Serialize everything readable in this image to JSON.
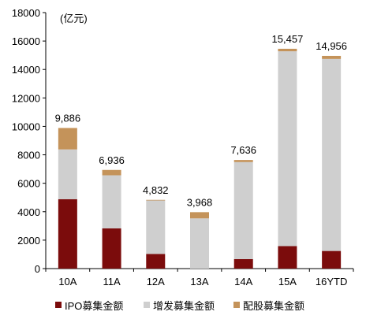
{
  "chart_data": {
    "type": "bar",
    "stacked": true,
    "unit_label": "(亿元)",
    "categories": [
      "10A",
      "11A",
      "12A",
      "13A",
      "14A",
      "15A",
      "16YTD"
    ],
    "series": [
      {
        "name": "IPO募集金额",
        "color": "#7b0c0c",
        "values": [
          4880,
          2830,
          1030,
          0,
          670,
          1580,
          1240
        ]
      },
      {
        "name": "增发募集金额",
        "color": "#cfcfcf",
        "values": [
          3500,
          3730,
          3760,
          3530,
          6820,
          13700,
          13500
        ]
      },
      {
        "name": "配股募集金额",
        "color": "#c4935a",
        "values": [
          1506,
          376,
          42,
          438,
          146,
          177,
          216
        ]
      }
    ],
    "totals": [
      9886,
      6936,
      4832,
      3968,
      7636,
      15457,
      14956
    ],
    "total_labels": [
      "9,886",
      "6,936",
      "4,832",
      "3,968",
      "7,636",
      "15,457",
      "14,956"
    ],
    "ylim": [
      0,
      18000
    ],
    "yticks": [
      0,
      2000,
      4000,
      6000,
      8000,
      10000,
      12000,
      14000,
      16000,
      18000
    ],
    "ytick_labels": [
      "0",
      "2000",
      "4000",
      "6000",
      "8000",
      "10000",
      "12000",
      "14000",
      "16000",
      "18000"
    ],
    "grid": false,
    "legend_position": "bottom"
  }
}
